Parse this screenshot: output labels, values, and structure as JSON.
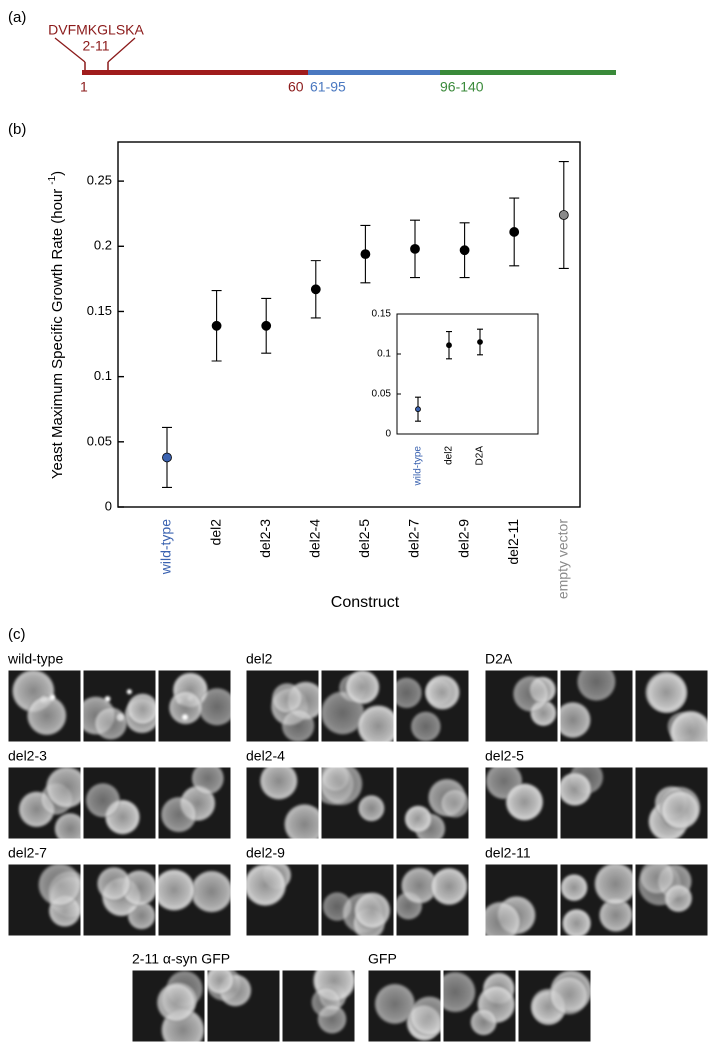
{
  "panel_a": {
    "label": "(a)",
    "sequence": "DVFMKGLSKA",
    "range": "2-11",
    "positions": [
      "1",
      "60",
      "61-95",
      "96-140"
    ]
  },
  "panel_b_label": "(b)",
  "chart_data": [
    {
      "type": "errorbar",
      "y_label": {
        "text": "Yeast Maximum Specific Growth Rate (hour",
        "superscript": "-1",
        "close": ")"
      },
      "x_label": "Construct",
      "categories": [
        "wild-type",
        "del2",
        "del2-3",
        "del2-4",
        "del2-5",
        "del2-7",
        "del2-9",
        "del2-11",
        "empty vector"
      ],
      "values": [
        0.038,
        0.139,
        0.139,
        0.167,
        0.194,
        0.198,
        0.197,
        0.211,
        0.224
      ],
      "errors": [
        0.023,
        0.027,
        0.021,
        0.022,
        0.022,
        0.022,
        0.021,
        0.026,
        0.041
      ],
      "colors": [
        "#3a62b0",
        "#000000",
        "#000000",
        "#000000",
        "#000000",
        "#000000",
        "#000000",
        "#000000",
        "#8a8a8a"
      ],
      "label_colors": [
        "#3a62b0",
        "#000000",
        "#000000",
        "#000000",
        "#000000",
        "#000000",
        "#000000",
        "#000000",
        "#8a8a8a"
      ],
      "ylim": [
        0,
        0.28
      ],
      "yticks": [
        0,
        0.05,
        0.1,
        0.15,
        0.2,
        0.25
      ]
    },
    {
      "type": "errorbar",
      "categories": [
        "wild-type",
        "del2",
        "D2A"
      ],
      "values": [
        0.031,
        0.111,
        0.115
      ],
      "errors": [
        0.015,
        0.017,
        0.016
      ],
      "colors": [
        "#3a62b0",
        "#000000",
        "#000000"
      ],
      "label_colors": [
        "#3a62b0",
        "#000000",
        "#000000"
      ],
      "ylim": [
        0,
        0.15
      ],
      "yticks": [
        0,
        0.05,
        0.1,
        0.15
      ]
    }
  ],
  "panel_c": {
    "label": "(c)",
    "groups": [
      "wild-type",
      "del2",
      "D2A",
      "del2-3",
      "del2-4",
      "del2-5",
      "del2-7",
      "del2-9",
      "del2-11",
      "2-11 α-syn GFP",
      "GFP"
    ]
  }
}
